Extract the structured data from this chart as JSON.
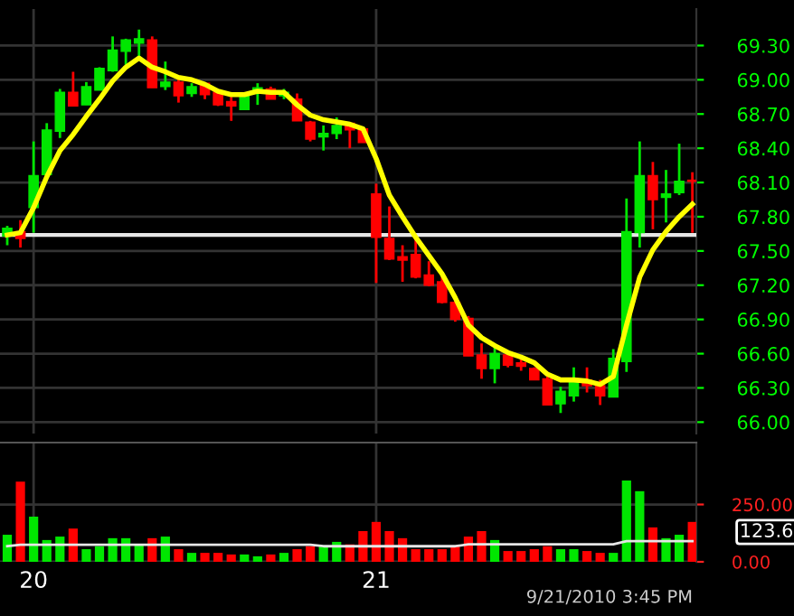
{
  "chart_data": [
    {
      "type": "candlestick",
      "categories": [
        null,
        null,
        "20",
        null,
        null,
        null,
        null,
        null,
        null,
        null,
        null,
        null,
        null,
        null,
        null,
        null,
        null,
        null,
        null,
        null,
        null,
        null,
        null,
        null,
        null,
        null,
        null,
        null,
        "21",
        null,
        null,
        null,
        null,
        null,
        null,
        null,
        null,
        null,
        null,
        null,
        null,
        null,
        null,
        null,
        null,
        null,
        null,
        null,
        null,
        null,
        null,
        null,
        null
      ],
      "ohlc": [
        [
          67.63,
          67.72,
          67.55,
          67.7
        ],
        [
          67.67,
          67.77,
          67.53,
          67.61
        ],
        [
          67.88,
          68.46,
          67.66,
          68.16
        ],
        [
          68.17,
          68.62,
          68.14,
          68.56
        ],
        [
          68.55,
          68.92,
          68.49,
          68.89
        ],
        [
          68.89,
          69.07,
          68.77,
          68.77
        ],
        [
          68.78,
          68.98,
          68.78,
          68.94
        ],
        [
          68.91,
          69.11,
          68.91,
          69.1
        ],
        [
          69.08,
          69.38,
          69.07,
          69.26
        ],
        [
          69.25,
          69.36,
          69.13,
          69.35
        ],
        [
          69.32,
          69.44,
          69.18,
          69.36
        ],
        [
          69.35,
          69.38,
          68.93,
          68.93
        ],
        [
          68.94,
          69.16,
          68.91,
          68.98
        ],
        [
          68.98,
          69.02,
          68.8,
          68.86
        ],
        [
          68.88,
          68.97,
          68.85,
          68.94
        ],
        [
          68.97,
          68.98,
          68.83,
          68.87
        ],
        [
          68.89,
          68.91,
          68.77,
          68.78
        ],
        [
          68.81,
          68.85,
          68.64,
          68.77
        ],
        [
          68.74,
          68.89,
          68.74,
          68.88
        ],
        [
          68.89,
          68.97,
          68.78,
          68.93
        ],
        [
          68.92,
          68.94,
          68.83,
          68.83
        ],
        [
          68.86,
          68.92,
          68.83,
          68.89
        ],
        [
          68.83,
          68.88,
          68.64,
          68.64
        ],
        [
          68.63,
          68.64,
          68.46,
          68.48
        ],
        [
          68.5,
          68.6,
          68.38,
          68.53
        ],
        [
          68.53,
          68.67,
          68.48,
          68.6
        ],
        [
          68.62,
          68.62,
          68.4,
          68.56
        ],
        [
          68.57,
          68.58,
          68.45,
          68.45
        ],
        [
          68.0,
          68.09,
          67.22,
          67.62
        ],
        [
          67.61,
          67.89,
          67.42,
          67.43
        ],
        [
          67.45,
          67.55,
          67.23,
          67.42
        ],
        [
          67.47,
          67.61,
          67.26,
          67.27
        ],
        [
          67.29,
          67.41,
          67.19,
          67.2
        ],
        [
          67.23,
          67.3,
          67.04,
          67.05
        ],
        [
          67.05,
          67.06,
          66.88,
          66.9
        ],
        [
          66.91,
          66.93,
          66.58,
          66.58
        ],
        [
          66.59,
          66.69,
          66.38,
          66.47
        ],
        [
          66.47,
          66.69,
          66.34,
          66.6
        ],
        [
          66.59,
          66.61,
          66.48,
          66.5
        ],
        [
          66.52,
          66.56,
          66.45,
          66.49
        ],
        [
          66.47,
          66.48,
          66.37,
          66.37
        ],
        [
          66.38,
          66.4,
          66.15,
          66.15
        ],
        [
          66.16,
          66.31,
          66.08,
          66.27
        ],
        [
          66.23,
          66.48,
          66.18,
          66.35
        ],
        [
          66.37,
          66.48,
          66.26,
          66.32
        ],
        [
          66.32,
          66.37,
          66.15,
          66.23
        ],
        [
          66.22,
          66.64,
          66.22,
          66.56
        ],
        [
          66.53,
          67.96,
          66.44,
          67.67
        ],
        [
          67.66,
          68.46,
          67.53,
          68.16
        ],
        [
          68.16,
          68.28,
          67.69,
          67.95
        ],
        [
          67.97,
          68.21,
          67.75,
          68.0
        ],
        [
          68.01,
          68.44,
          67.99,
          68.11
        ],
        [
          68.12,
          68.19,
          67.66,
          68.11
        ]
      ],
      "colors": [
        "#00e600",
        "#ff0000",
        "#00e600",
        "#00e600",
        "#00e600",
        "#ff0000",
        "#00e600",
        "#00e600",
        "#00e600",
        "#00e600",
        "#00e600",
        "#ff0000",
        "#00e600",
        "#ff0000",
        "#00e600",
        "#ff0000",
        "#ff0000",
        "#ff0000",
        "#00e600",
        "#00e600",
        "#ff0000",
        "#00e600",
        "#ff0000",
        "#ff0000",
        "#00e600",
        "#00e600",
        "#ff0000",
        "#ff0000",
        "#ff0000",
        "#ff0000",
        "#ff0000",
        "#ff0000",
        "#ff0000",
        "#ff0000",
        "#ff0000",
        "#ff0000",
        "#ff0000",
        "#00e600",
        "#ff0000",
        "#ff0000",
        "#ff0000",
        "#ff0000",
        "#00e600",
        "#00e600",
        "#ff0000",
        "#ff0000",
        "#00e600",
        "#00e600",
        "#00e600",
        "#ff0000",
        "#00e600",
        "#00e600",
        "#ff0000"
      ],
      "series": [
        {
          "type": "line",
          "color": "#ffff00",
          "values": [
            67.64,
            67.66,
            67.88,
            68.15,
            68.38,
            68.52,
            68.68,
            68.83,
            68.99,
            69.11,
            69.19,
            69.11,
            69.07,
            69.02,
            69.0,
            68.96,
            68.9,
            68.87,
            68.87,
            68.9,
            68.89,
            68.89,
            68.78,
            68.69,
            68.65,
            68.63,
            68.61,
            68.57,
            68.31,
            67.99,
            67.8,
            67.62,
            67.46,
            67.3,
            67.09,
            66.85,
            66.74,
            66.67,
            66.61,
            66.57,
            66.52,
            66.42,
            66.37,
            66.37,
            66.36,
            66.33,
            66.4,
            66.85,
            67.27,
            67.51,
            67.67,
            67.8,
            67.91
          ]
        }
      ],
      "ylim": [
        65.9,
        69.62
      ],
      "yticks": [
        {
          "value": 66.0,
          "label": "66.00"
        },
        {
          "value": 66.3,
          "label": "66.30"
        },
        {
          "value": 66.6,
          "label": "66.60"
        },
        {
          "value": 66.9,
          "label": "66.90"
        },
        {
          "value": 67.2,
          "label": "67.20"
        },
        {
          "value": 67.5,
          "label": "67.50"
        },
        {
          "value": 67.8,
          "label": "67.80"
        },
        {
          "value": 68.1,
          "label": "68.10"
        },
        {
          "value": 68.4,
          "label": "68.40"
        },
        {
          "value": 68.7,
          "label": "68.70"
        },
        {
          "value": 69.0,
          "label": "69.00"
        },
        {
          "value": 69.3,
          "label": "69.30"
        }
      ],
      "ref_lines": [
        {
          "axis": "y",
          "value": 67.64,
          "color": "#e6e6e6"
        }
      ],
      "grid": true,
      "tick_labels": "y"
    },
    {
      "type": "bar",
      "categories": [
        null,
        null,
        "20",
        null,
        null,
        null,
        null,
        null,
        null,
        null,
        null,
        null,
        null,
        null,
        null,
        null,
        null,
        null,
        null,
        null,
        null,
        null,
        null,
        null,
        null,
        null,
        null,
        null,
        "21",
        null,
        null,
        null,
        null,
        null,
        null,
        null,
        null,
        null,
        null,
        null,
        null,
        null,
        null,
        null,
        null,
        null,
        null,
        null,
        null,
        null,
        null,
        null,
        null
      ],
      "series": [
        {
          "type": "bar",
          "values": [
            118,
            350,
            197,
            95,
            110,
            145,
            55,
            68,
            103,
            103,
            76,
            103,
            110,
            55,
            39,
            39,
            39,
            32,
            32,
            24,
            32,
            39,
            55,
            68,
            68,
            87,
            76,
            134,
            174,
            134,
            103,
            55,
            55,
            55,
            68,
            110,
            134,
            95,
            47,
            47,
            55,
            68,
            55,
            55,
            47,
            39,
            39,
            355,
            308,
            150,
            103,
            118,
            174
          ],
          "colors": [
            "#00e600",
            "#ff0000",
            "#00e600",
            "#00e600",
            "#00e600",
            "#ff0000",
            "#00e600",
            "#00e600",
            "#00e600",
            "#00e600",
            "#00e600",
            "#ff0000",
            "#00e600",
            "#ff0000",
            "#00e600",
            "#ff0000",
            "#ff0000",
            "#ff0000",
            "#00e600",
            "#00e600",
            "#ff0000",
            "#00e600",
            "#ff0000",
            "#ff0000",
            "#00e600",
            "#00e600",
            "#ff0000",
            "#ff0000",
            "#ff0000",
            "#ff0000",
            "#ff0000",
            "#ff0000",
            "#ff0000",
            "#ff0000",
            "#ff0000",
            "#ff0000",
            "#ff0000",
            "#00e600",
            "#ff0000",
            "#ff0000",
            "#ff0000",
            "#ff0000",
            "#00e600",
            "#00e600",
            "#ff0000",
            "#ff0000",
            "#00e600",
            "#00e600",
            "#00e600",
            "#ff0000",
            "#00e600",
            "#00e600",
            "#ff0000"
          ]
        },
        {
          "type": "line",
          "color": "#e6e6e6",
          "values": [
            68,
            74,
            74,
            74,
            74,
            74,
            74,
            74,
            74,
            74,
            74,
            74,
            74,
            74,
            74,
            74,
            74,
            74,
            74,
            74,
            74,
            74,
            74,
            74,
            68,
            68,
            68,
            68,
            68,
            68,
            68,
            68,
            68,
            68,
            68,
            76,
            76,
            76,
            76,
            76,
            76,
            76,
            76,
            76,
            76,
            76,
            76,
            90,
            90,
            90,
            90,
            90,
            90
          ]
        }
      ],
      "ylim": [
        0,
        520
      ],
      "yticks": [
        {
          "value": 0,
          "label": "0.00"
        },
        {
          "value": 250,
          "label": "250.00"
        }
      ],
      "grid": true,
      "annotations": [
        "123.6",
        "9/21/2010 3:45 PM"
      ]
    }
  ]
}
